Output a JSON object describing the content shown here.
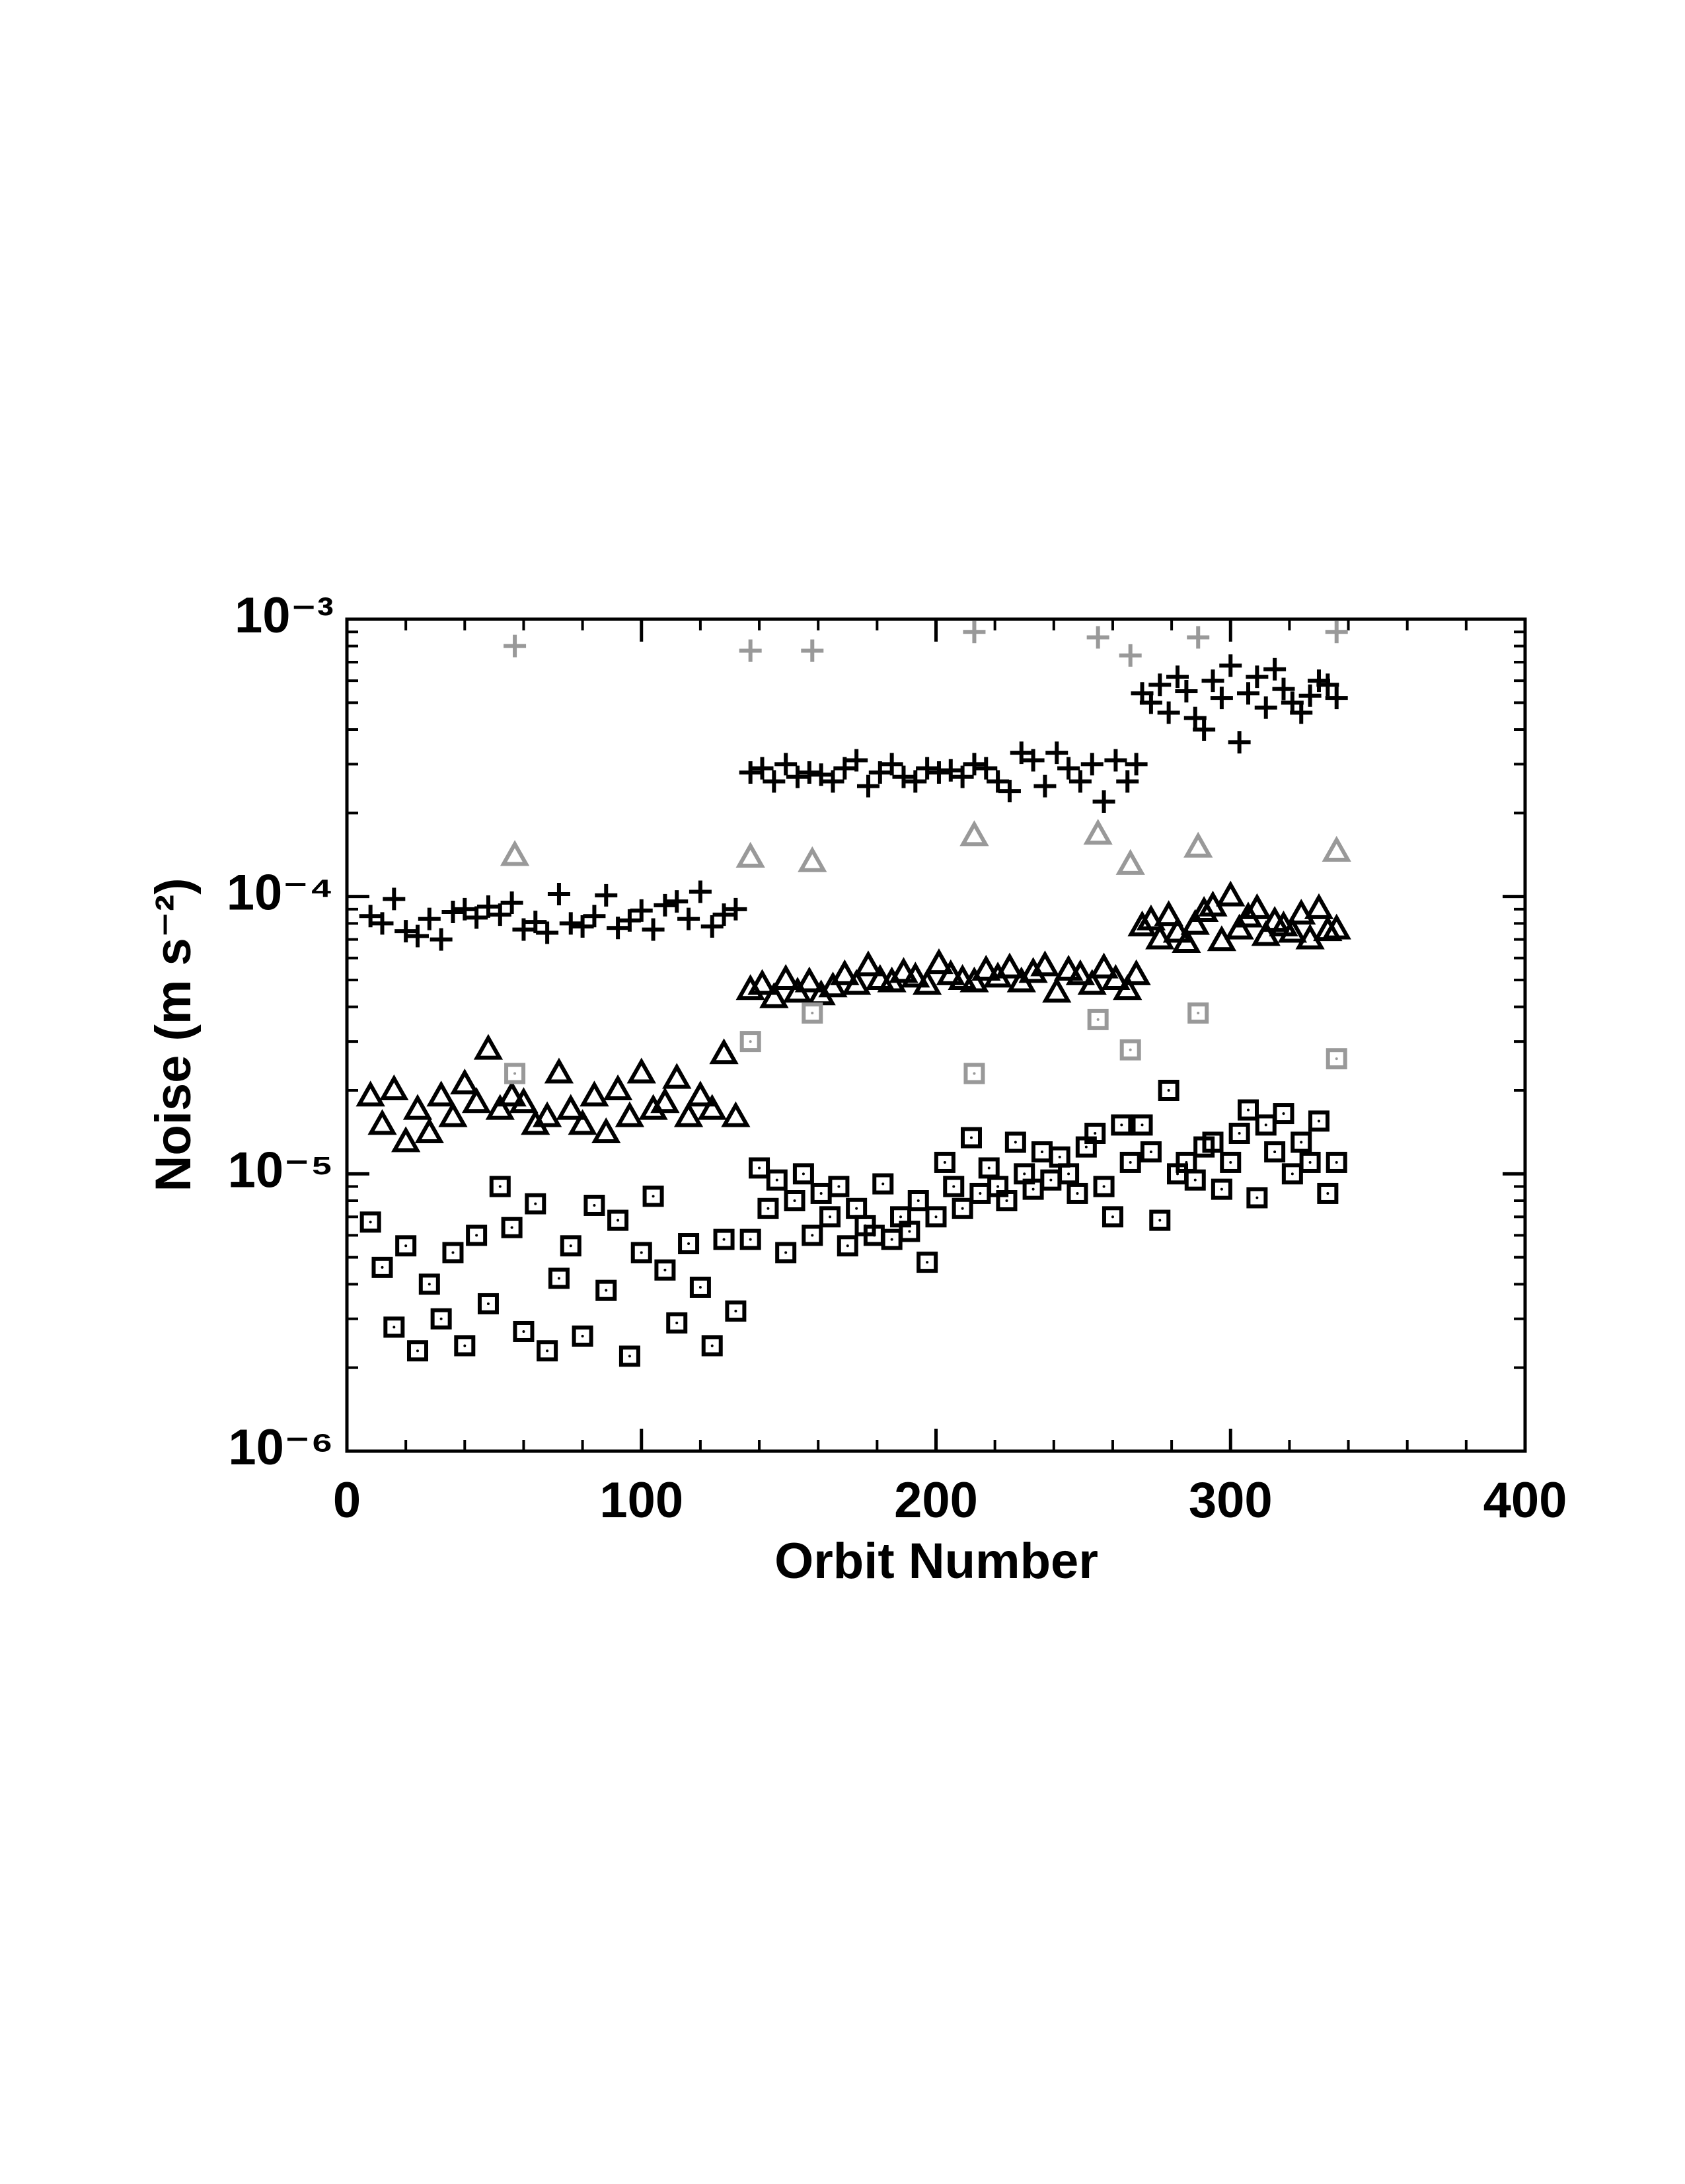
{
  "chart_data": {
    "type": "scatter",
    "xlabel": "Orbit Number",
    "ylabel": "Noise (m s⁻²)",
    "xlim": [
      0,
      400
    ],
    "xticks": [
      0,
      100,
      200,
      300,
      400
    ],
    "ylim": [
      1e-06,
      0.001
    ],
    "ylog": true,
    "yticks": [
      {
        "value": 1e-06,
        "label": "10⁻⁶"
      },
      {
        "value": 1e-05,
        "label": "10⁻⁵"
      },
      {
        "value": 0.0001,
        "label": "10⁻⁴"
      },
      {
        "value": 0.001,
        "label": "10⁻³"
      }
    ],
    "series": [
      {
        "marker": "plus",
        "color": "#000000",
        "x": [
          8,
          12,
          16,
          20,
          24,
          28,
          32,
          36,
          40,
          44,
          48,
          52,
          56,
          60,
          64,
          68,
          72,
          76,
          80,
          84,
          88,
          92,
          96,
          100,
          104,
          108,
          112,
          116,
          120,
          124,
          128,
          132,
          137,
          141,
          145,
          149,
          153,
          157,
          161,
          165,
          169,
          173,
          177,
          181,
          185,
          189,
          193,
          197,
          201,
          205,
          209,
          213,
          217,
          221,
          225,
          229,
          233,
          237,
          241,
          245,
          249,
          253,
          257,
          261,
          265,
          268,
          270,
          273,
          276,
          279,
          282,
          285,
          288,
          291,
          294,
          297,
          300,
          303,
          306,
          309,
          312,
          315,
          318,
          321,
          324,
          327,
          330,
          333,
          336
        ],
        "values": [
          8.5e-05,
          8e-05,
          9.8e-05,
          7.5e-05,
          7.2e-05,
          8.3e-05,
          7e-05,
          8.8e-05,
          9e-05,
          8.4e-05,
          9.2e-05,
          8.6e-05,
          9.5e-05,
          7.6e-05,
          8.1e-05,
          7.4e-05,
          0.000102,
          8e-05,
          7.8e-05,
          8.5e-05,
          0.000101,
          7.7e-05,
          8.2e-05,
          8.9e-05,
          7.6e-05,
          9.3e-05,
          9.6e-05,
          8.3e-05,
          0.000104,
          7.8e-05,
          8.6e-05,
          9e-05,
          0.00028,
          0.00029,
          0.00026,
          0.0003,
          0.00027,
          0.00028,
          0.000275,
          0.00026,
          0.00029,
          0.00031,
          0.00025,
          0.00028,
          0.0003,
          0.00027,
          0.00026,
          0.00029,
          0.00028,
          0.000285,
          0.00027,
          0.0003,
          0.00029,
          0.00026,
          0.00024,
          0.00033,
          0.00031,
          0.00025,
          0.00033,
          0.00029,
          0.00026,
          0.0003,
          0.00022,
          0.00031,
          0.00026,
          0.0003,
          0.00054,
          0.0005,
          0.00058,
          0.00046,
          0.00062,
          0.00055,
          0.00044,
          0.0004,
          0.0006,
          0.00052,
          0.00068,
          0.00036,
          0.00054,
          0.00062,
          0.00048,
          0.00066,
          0.00056,
          0.0005,
          0.00046,
          0.00053,
          0.0006,
          0.00058,
          0.00052
        ]
      },
      {
        "marker": "plus",
        "color": "#999999",
        "x": [
          57,
          137,
          158,
          213,
          255,
          266,
          289,
          336
        ],
        "values": [
          0.0008,
          0.00077,
          0.00077,
          0.0009,
          0.00086,
          0.00074,
          0.00086,
          0.0009
        ]
      },
      {
        "marker": "triangle",
        "color": "#000000",
        "x": [
          8,
          12,
          16,
          20,
          24,
          28,
          32,
          36,
          40,
          44,
          48,
          52,
          56,
          60,
          64,
          68,
          72,
          76,
          80,
          84,
          88,
          92,
          96,
          100,
          104,
          108,
          112,
          116,
          120,
          124,
          128,
          132,
          137,
          141,
          145,
          149,
          153,
          157,
          161,
          165,
          169,
          173,
          177,
          181,
          185,
          189,
          193,
          197,
          201,
          205,
          209,
          213,
          217,
          221,
          225,
          229,
          233,
          237,
          241,
          245,
          249,
          253,
          257,
          261,
          265,
          268,
          270,
          273,
          276,
          279,
          282,
          285,
          288,
          291,
          294,
          297,
          300,
          303,
          306,
          309,
          312,
          315,
          318,
          321,
          324,
          327,
          330,
          333,
          336
        ],
        "values": [
          1.9e-05,
          1.5e-05,
          2e-05,
          1.3e-05,
          1.7e-05,
          1.4e-05,
          1.9e-05,
          1.6e-05,
          2.1e-05,
          1.8e-05,
          2.8e-05,
          1.7e-05,
          1.9e-05,
          1.8e-05,
          1.5e-05,
          1.6e-05,
          2.3e-05,
          1.7e-05,
          1.5e-05,
          1.9e-05,
          1.4e-05,
          2e-05,
          1.6e-05,
          2.3e-05,
          1.7e-05,
          1.8e-05,
          2.2e-05,
          1.6e-05,
          1.9e-05,
          1.7e-05,
          2.7e-05,
          1.6e-05,
          4.6e-05,
          4.8e-05,
          4.3e-05,
          5e-05,
          4.5e-05,
          4.9e-05,
          4.4e-05,
          4.7e-05,
          5.2e-05,
          4.8e-05,
          5.6e-05,
          5e-05,
          4.9e-05,
          5.3e-05,
          5.1e-05,
          4.8e-05,
          5.7e-05,
          5.2e-05,
          5e-05,
          4.9e-05,
          5.4e-05,
          5.1e-05,
          5.5e-05,
          4.9e-05,
          5.3e-05,
          5.6e-05,
          4.5e-05,
          5.4e-05,
          5.2e-05,
          4.8e-05,
          5.5e-05,
          5e-05,
          4.6e-05,
          5.2e-05,
          7.8e-05,
          8.2e-05,
          7e-05,
          8.5e-05,
          7.4e-05,
          6.8e-05,
          7.9e-05,
          8.8e-05,
          9.2e-05,
          6.9e-05,
          0.0001,
          7.6e-05,
          8.4e-05,
          9e-05,
          7.2e-05,
          8.1e-05,
          7.8e-05,
          7.4e-05,
          8.6e-05,
          7e-05,
          9e-05,
          7.5e-05,
          7.6e-05
        ]
      },
      {
        "marker": "triangle",
        "color": "#999999",
        "x": [
          57,
          137,
          158,
          213,
          255,
          266,
          289,
          336
        ],
        "values": [
          0.00014,
          0.000138,
          0.000133,
          0.000165,
          0.000167,
          0.00013,
          0.00015,
          0.000145
        ]
      },
      {
        "marker": "square",
        "color": "#000000",
        "x": [
          8,
          12,
          16,
          20,
          24,
          28,
          32,
          36,
          40,
          44,
          48,
          52,
          56,
          60,
          64,
          68,
          72,
          76,
          80,
          84,
          88,
          92,
          96,
          100,
          104,
          108,
          112,
          116,
          120,
          124,
          128,
          132,
          137,
          140,
          143,
          146,
          149,
          152,
          155,
          158,
          161,
          164,
          167,
          170,
          173,
          176,
          179,
          182,
          185,
          188,
          191,
          194,
          197,
          200,
          203,
          206,
          209,
          212,
          215,
          218,
          221,
          224,
          227,
          230,
          233,
          236,
          239,
          242,
          245,
          248,
          251,
          254,
          257,
          260,
          263,
          266,
          270,
          273,
          276,
          279,
          282,
          285,
          288,
          291,
          294,
          297,
          300,
          303,
          306,
          309,
          312,
          315,
          318,
          321,
          324,
          327,
          330,
          333,
          336
        ],
        "values": [
          6.7e-06,
          4.6e-06,
          2.8e-06,
          5.5e-06,
          2.3e-06,
          4e-06,
          3e-06,
          5.2e-06,
          2.4e-06,
          6e-06,
          3.4e-06,
          9e-06,
          6.4e-06,
          2.7e-06,
          7.8e-06,
          2.3e-06,
          4.2e-06,
          5.5e-06,
          2.6e-06,
          7.7e-06,
          3.8e-06,
          6.8e-06,
          2.2e-06,
          5.2e-06,
          8.3e-06,
          4.5e-06,
          2.9e-06,
          5.6e-06,
          3.9e-06,
          2.4e-06,
          5.8e-06,
          3.2e-06,
          5.8e-06,
          1.05e-05,
          7.5e-06,
          9.5e-06,
          5.2e-06,
          8e-06,
          1e-05,
          6e-06,
          8.5e-06,
          7e-06,
          9e-06,
          5.5e-06,
          7.5e-06,
          6.5e-06,
          6e-06,
          9.2e-06,
          5.8e-06,
          7e-06,
          6.2e-06,
          8e-06,
          4.8e-06,
          7e-06,
          1.1e-05,
          9e-06,
          7.5e-06,
          1.35e-05,
          8.5e-06,
          1.05e-05,
          9e-06,
          8e-06,
          1.3e-05,
          1e-05,
          8.8e-06,
          1.2e-05,
          9.5e-06,
          1.15e-05,
          1e-05,
          8.5e-06,
          1.25e-05,
          1.4e-05,
          9e-06,
          7e-06,
          1.5e-05,
          1.1e-05,
          1.5e-05,
          1.2e-05,
          6.8e-06,
          2e-05,
          1e-05,
          1.1e-05,
          9.5e-06,
          1.25e-05,
          1.3e-05,
          8.8e-06,
          1.1e-05,
          1.4e-05,
          1.7e-05,
          8.2e-06,
          1.5e-05,
          1.2e-05,
          1.65e-05,
          1e-05,
          1.3e-05,
          1.1e-05,
          1.55e-05,
          8.5e-06,
          1.1e-05
        ]
      },
      {
        "marker": "square",
        "color": "#999999",
        "x": [
          57,
          137,
          158,
          213,
          255,
          266,
          289,
          336
        ],
        "values": [
          2.3e-05,
          3e-05,
          3.8e-05,
          2.3e-05,
          3.6e-05,
          2.8e-05,
          3.8e-05,
          2.6e-05
        ]
      }
    ]
  }
}
